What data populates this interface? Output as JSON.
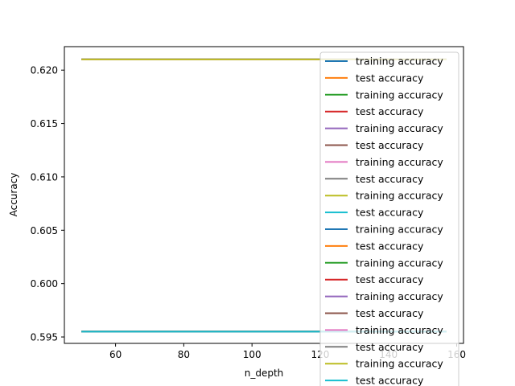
{
  "chart_data": {
    "type": "line",
    "title": "",
    "xlabel": "n_depth",
    "ylabel": "Accuracy",
    "xlim": [
      45,
      162
    ],
    "ylim": [
      0.5944,
      0.6222
    ],
    "x_ticks": [
      60,
      80,
      100,
      120,
      140,
      160
    ],
    "x_tick_labels": [
      "60",
      "80",
      "100",
      "120",
      "140",
      "160"
    ],
    "y_ticks": [
      0.595,
      0.6,
      0.605,
      0.61,
      0.615,
      0.62
    ],
    "y_tick_labels": [
      "0.595",
      "0.600",
      "0.605",
      "0.610",
      "0.615",
      "0.620"
    ],
    "grid": false,
    "legend_position": "right",
    "x": [
      50,
      157
    ],
    "series": [
      {
        "name": "training accuracy",
        "color": "#1f77b4",
        "values": [
          0.621,
          0.621
        ]
      },
      {
        "name": "test accuracy",
        "color": "#ff7f0e",
        "values": [
          0.5955,
          0.5955
        ]
      },
      {
        "name": "training accuracy",
        "color": "#2ca02c",
        "values": [
          0.621,
          0.621
        ]
      },
      {
        "name": "test accuracy",
        "color": "#d62728",
        "values": [
          0.5955,
          0.5955
        ]
      },
      {
        "name": "training accuracy",
        "color": "#9467bd",
        "values": [
          0.621,
          0.621
        ]
      },
      {
        "name": "test accuracy",
        "color": "#8c564b",
        "values": [
          0.5955,
          0.5955
        ]
      },
      {
        "name": "training accuracy",
        "color": "#e377c2",
        "values": [
          0.621,
          0.621
        ]
      },
      {
        "name": "test accuracy",
        "color": "#7f7f7f",
        "values": [
          0.5955,
          0.5955
        ]
      },
      {
        "name": "training accuracy",
        "color": "#bcbd22",
        "values": [
          0.621,
          0.621
        ]
      },
      {
        "name": "test accuracy",
        "color": "#17becf",
        "values": [
          0.5955,
          0.5955
        ]
      },
      {
        "name": "training accuracy",
        "color": "#1f77b4",
        "values": [
          0.621,
          0.621
        ]
      },
      {
        "name": "test accuracy",
        "color": "#ff7f0e",
        "values": [
          0.5955,
          0.5955
        ]
      },
      {
        "name": "training accuracy",
        "color": "#2ca02c",
        "values": [
          0.621,
          0.621
        ]
      },
      {
        "name": "test accuracy",
        "color": "#d62728",
        "values": [
          0.5955,
          0.5955
        ]
      },
      {
        "name": "training accuracy",
        "color": "#9467bd",
        "values": [
          0.621,
          0.621
        ]
      },
      {
        "name": "test accuracy",
        "color": "#8c564b",
        "values": [
          0.5955,
          0.5955
        ]
      },
      {
        "name": "training accuracy",
        "color": "#e377c2",
        "values": [
          0.621,
          0.621
        ]
      },
      {
        "name": "test accuracy",
        "color": "#7f7f7f",
        "values": [
          0.5955,
          0.5955
        ]
      },
      {
        "name": "training accuracy",
        "color": "#bcbd22",
        "values": [
          0.621,
          0.621
        ]
      },
      {
        "name": "test accuracy",
        "color": "#17becf",
        "values": [
          0.5955,
          0.5955
        ]
      }
    ]
  }
}
